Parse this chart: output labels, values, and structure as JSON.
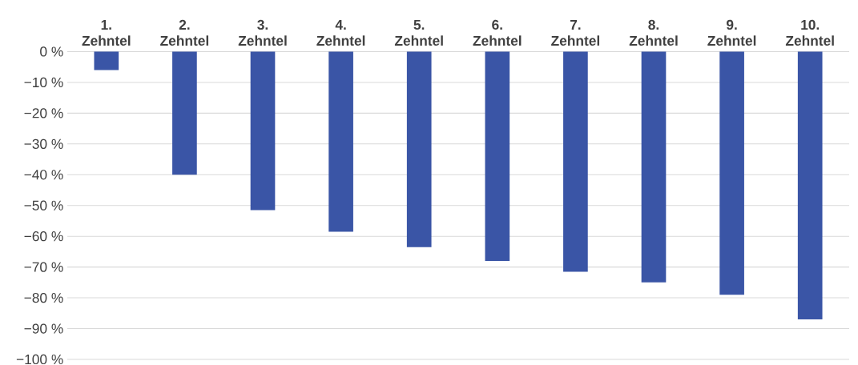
{
  "chart_data": {
    "type": "bar",
    "categories": [
      "1. Zehntel",
      "2. Zehntel",
      "3. Zehntel",
      "4. Zehntel",
      "5. Zehntel",
      "6. Zehntel",
      "7. Zehntel",
      "8. Zehntel",
      "9. Zehntel",
      "10. Zehntel"
    ],
    "values": [
      -6,
      -40,
      -51.5,
      -58.5,
      -63.5,
      -68,
      -71.5,
      -75,
      -79,
      -87
    ],
    "color": "#3a55a6",
    "ylim": [
      -100,
      0
    ],
    "yticks": [
      {
        "value": 0,
        "label": "0 %"
      },
      {
        "value": -10,
        "label": "−10 %"
      },
      {
        "value": -20,
        "label": "−20 %"
      },
      {
        "value": -30,
        "label": "−30 %"
      },
      {
        "value": -40,
        "label": "−40 %"
      },
      {
        "value": -50,
        "label": "−50 %"
      },
      {
        "value": -60,
        "label": "−60 %"
      },
      {
        "value": -70,
        "label": "−70 %"
      },
      {
        "value": -80,
        "label": "−80 %"
      },
      {
        "value": -90,
        "label": "−90 %"
      },
      {
        "value": -100,
        "label": "−100 %"
      }
    ],
    "grid": "y"
  }
}
